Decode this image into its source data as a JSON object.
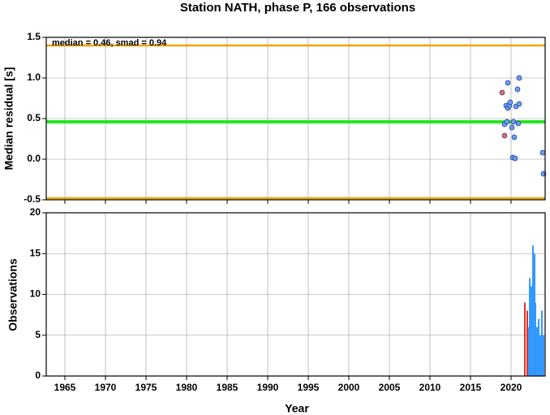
{
  "chart_data": [
    {
      "type": "scatter",
      "title": "Station NATH, phase P, 166 observations",
      "ylabel": "Median residual [s]",
      "annotation": "median = 0.46, smad = 0.94",
      "xlim": [
        1962.7,
        2024.2
      ],
      "ylim": [
        -0.5,
        1.5
      ],
      "yticks": [
        1.5,
        {
          "value": 1.0,
          "label": "1.0"
        },
        0.5,
        {
          "value": 0.0,
          "label": "0.0"
        },
        -0.5
      ],
      "grid": true,
      "hlines": [
        {
          "value": 1.4,
          "color": "#f0a500"
        },
        {
          "value": 0.46,
          "color": "#22e622"
        },
        {
          "value": -0.48,
          "color": "#f0a500"
        }
      ],
      "series": [
        {
          "color": "#f26b5b",
          "x": [
            2018.9,
            2019.2
          ],
          "values": [
            0.82,
            0.29
          ]
        },
        {
          "color": "#6d9cf2",
          "x": [
            2019.6,
            2019.4,
            2019.6,
            2019.8,
            2019.2,
            2019.5,
            2019.9,
            2020.1,
            2020.3,
            2020.4,
            2020.6,
            2020.8,
            2021.0,
            2021.0,
            2020.2,
            2020.5,
            2020.9,
            2023.9,
            2024.0
          ],
          "values": [
            0.94,
            0.66,
            0.63,
            0.66,
            0.43,
            0.46,
            0.7,
            0.39,
            0.46,
            0.27,
            0.65,
            0.86,
            0.68,
            1.0,
            0.02,
            0.01,
            0.44,
            0.08,
            -0.18
          ]
        }
      ]
    },
    {
      "type": "bar",
      "xlabel": "Year",
      "ylabel": "Observations",
      "xlim": [
        1962.7,
        2024.2
      ],
      "ylim": [
        0,
        20
      ],
      "xticks": [
        1965,
        1970,
        1975,
        1980,
        1985,
        1990,
        1995,
        2000,
        2005,
        2010,
        2015,
        2020
      ],
      "yticks": [
        0,
        5,
        10,
        15,
        20
      ],
      "grid": true,
      "series": [
        {
          "color": "#e0302a",
          "x": [
            2021.7,
            2022.0
          ],
          "values": [
            9,
            8
          ]
        },
        {
          "color": "#3399ff",
          "x": [
            2022.2,
            2022.3,
            2022.5,
            2022.7,
            2022.9,
            2023.0,
            2023.2,
            2023.4,
            2023.6,
            2023.8,
            2024.0
          ],
          "values": [
            6,
            12,
            11,
            16,
            15,
            9,
            6,
            7,
            5,
            8,
            5
          ]
        }
      ]
    }
  ]
}
